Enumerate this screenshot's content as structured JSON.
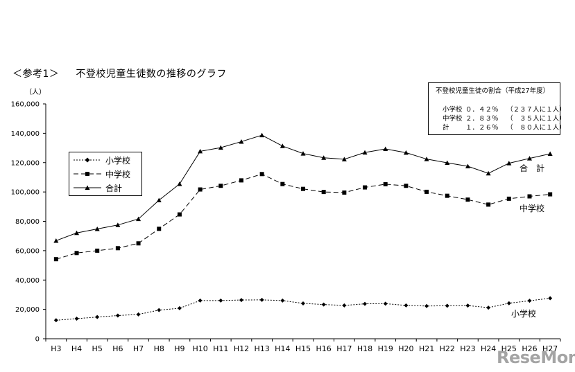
{
  "heading": {
    "tag": "＜参考1＞",
    "title": "不登校児童生徒数の推移のグラフ"
  },
  "info_box": {
    "title": "不登校児童生徒の割合（平成27年度）",
    "rows": [
      {
        "name": "小学校",
        "pct": "０．４２％",
        "note": "（２３７人に１人）"
      },
      {
        "name": "中学校",
        "pct": "２．８３％",
        "note": "（　３５人に１人）"
      },
      {
        "name": "計",
        "pct": "１．２６％",
        "note": "（　８０人に１人）"
      }
    ]
  },
  "legend": [
    {
      "label": "小学校",
      "marker": "diamond",
      "dash": "2,2"
    },
    {
      "label": "中学校",
      "marker": "square",
      "dash": "7,4"
    },
    {
      "label": "合計",
      "marker": "triangle",
      "dash": ""
    }
  ],
  "series_labels": {
    "total": "合　計",
    "middle": "中学校",
    "elementary": "小学校"
  },
  "watermark": "ReseMom",
  "chart_data": {
    "type": "line",
    "ylabel": "（人）",
    "ylim": [
      0,
      160000
    ],
    "yticks": [
      "0",
      "20,000",
      "40,000",
      "60,000",
      "80,000",
      "100,000",
      "120,000",
      "140,000",
      "160,000"
    ],
    "categories": [
      "H3",
      "H4",
      "H5",
      "H6",
      "H7",
      "H8",
      "H9",
      "H10",
      "H11",
      "H12",
      "H13",
      "H14",
      "H15",
      "H16",
      "H17",
      "H18",
      "H19",
      "H20",
      "H21",
      "H22",
      "H23",
      "H24",
      "H25",
      "H26",
      "H27"
    ],
    "series": [
      {
        "name": "小学校",
        "marker": "diamond",
        "dash": "2,2",
        "values": [
          12600,
          13700,
          14800,
          15800,
          16600,
          19500,
          20800,
          26000,
          26000,
          26400,
          26500,
          26000,
          24100,
          23300,
          22700,
          23800,
          23900,
          22700,
          22300,
          22500,
          22600,
          21200,
          24200,
          25900,
          27600
        ]
      },
      {
        "name": "中学校",
        "marker": "square",
        "dash": "7,4",
        "values": [
          54200,
          58400,
          60000,
          61700,
          65000,
          74900,
          84700,
          101700,
          104200,
          107900,
          112200,
          105400,
          102100,
          100000,
          99600,
          103100,
          105300,
          104200,
          100100,
          97400,
          94800,
          91400,
          95400,
          97000,
          98400
        ]
      },
      {
        "name": "合計",
        "marker": "triangle",
        "dash": "",
        "values": [
          66800,
          72100,
          74800,
          77500,
          81600,
          94400,
          105500,
          127700,
          130200,
          134300,
          138700,
          131300,
          126200,
          123300,
          122300,
          126900,
          129300,
          126800,
          122400,
          119900,
          117500,
          112700,
          119600,
          122900,
          126000
        ]
      }
    ]
  }
}
